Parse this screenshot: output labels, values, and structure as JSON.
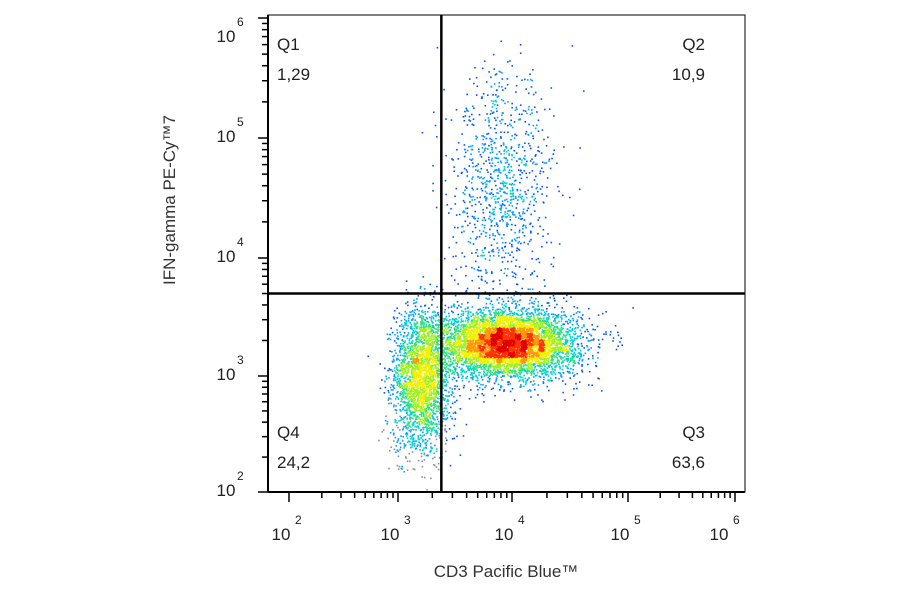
{
  "chart_data": {
    "type": "scatter",
    "xlabel": "CD3 Pacific Blue™",
    "ylabel": "IFN-gamma PE-Cy™7",
    "x_scale": "log",
    "y_scale": "log",
    "x_ticks": [
      {
        "base": "10",
        "exp": "2",
        "value": 100
      },
      {
        "base": "10",
        "exp": "3",
        "value": 1000
      },
      {
        "base": "10",
        "exp": "4",
        "value": 10000
      },
      {
        "base": "10",
        "exp": "5",
        "value": 100000
      },
      {
        "base": "10",
        "exp": "6",
        "value": 1000000
      }
    ],
    "y_ticks": [
      {
        "base": "10",
        "exp": "2",
        "value": 100
      },
      {
        "base": "10",
        "exp": "3",
        "value": 1000
      },
      {
        "base": "10",
        "exp": "4",
        "value": 10000
      },
      {
        "base": "10",
        "exp": "5",
        "value": 100000
      },
      {
        "base": "10",
        "exp": "6",
        "value": 1000000
      }
    ],
    "gate": {
      "x": 2400,
      "y": 5000
    },
    "quadrants": [
      {
        "label": "Q1",
        "value": "1,29"
      },
      {
        "label": "Q2",
        "value": "10,9"
      },
      {
        "label": "Q3",
        "value": "63,6"
      },
      {
        "label": "Q4",
        "value": "24,2"
      }
    ],
    "populations": [
      {
        "x": 1600,
        "y": 1100,
        "spread_x": 0.12,
        "spread_y": 0.28,
        "share": 0.22
      },
      {
        "x": 9000,
        "y": 1900,
        "spread_x": 0.3,
        "spread_y": 0.14,
        "share": 0.62
      },
      {
        "x": 8000,
        "y": 35000,
        "spread_x": 0.22,
        "spread_y": 0.5,
        "share": 0.11
      },
      {
        "x": 1600,
        "y": 500,
        "spread_x": 0.15,
        "spread_y": 0.25,
        "share": 0.05
      }
    ]
  }
}
